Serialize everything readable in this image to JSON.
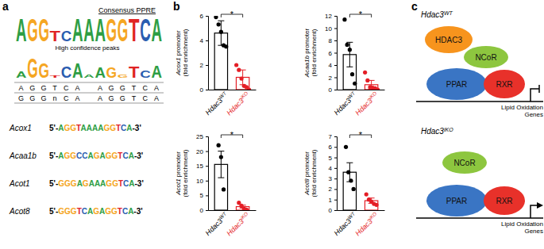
{
  "panel_labels": [
    "a",
    "b",
    "c"
  ],
  "panel_a": {
    "title": "Consensus PPRE",
    "subtitle": "High confidence peaks",
    "base_colors": {
      "A": "#2e9e44",
      "G": "#f5a623",
      "C": "#2a5db0",
      "T": "#e02424",
      "n": "#333333"
    },
    "consensus_logo": {
      "letters": [
        "A",
        "G",
        "G",
        "T",
        "C",
        "A",
        "A",
        "A",
        "G",
        "G",
        "T",
        "C",
        "A"
      ],
      "heights": [
        2,
        2,
        2,
        0.9,
        0.9,
        2,
        2,
        2,
        2,
        2,
        2,
        2,
        2
      ]
    },
    "peaks_logo": {
      "letters": [
        "A",
        "G",
        "G",
        "T",
        "C",
        "A",
        "A",
        "A",
        "G",
        "G",
        "T",
        "C",
        "A"
      ],
      "heights": [
        0.5,
        1.7,
        1.3,
        0.2,
        1.0,
        1.3,
        0.3,
        0.9,
        0.9,
        0.3,
        1.0,
        0.6,
        1.1
      ]
    },
    "alignment": [
      [
        "A",
        "G",
        "G",
        "T",
        "C",
        "A",
        "A",
        "G",
        "G",
        "T",
        "C",
        "A"
      ],
      [
        "G",
        "G",
        "G",
        "n",
        "C",
        "A",
        "A",
        "G",
        "G",
        "T",
        "C",
        "A"
      ]
    ],
    "genes": [
      {
        "name": "Acox1",
        "prefix": "5'-",
        "sequence": "AGGTAAAAGGTCA",
        "suffix": "-3'"
      },
      {
        "name": "Acaa1b",
        "prefix": "5'-",
        "sequence": "AGGCCAGAGGTCA",
        "suffix": "-3'"
      },
      {
        "name": "Acot1",
        "prefix": "5'-",
        "sequence": "GGGAGAAAGGTCA",
        "suffix": "-3'"
      },
      {
        "name": "Acot8",
        "prefix": "5'-",
        "sequence": "GGGTCAGAGGTCA",
        "suffix": "-3'"
      }
    ]
  },
  "chart_data": [
    {
      "type": "bar",
      "y_label": [
        "Acox1 promoter",
        "(fold enrichment)"
      ],
      "categories": [
        "Hdac3WT",
        "Hdac3iKO"
      ],
      "values": [
        4.6,
        1.0
      ],
      "errors": [
        1.0,
        0.6
      ],
      "points": [
        [
          5.9,
          5.3,
          4.7,
          3.6,
          3.5
        ],
        [
          2.0,
          1.6,
          0.9,
          0.3,
          0.2,
          0.0
        ]
      ],
      "colors": [
        "#000000",
        "#e41e26"
      ],
      "ylim": [
        0,
        6
      ],
      "yticks": [
        0,
        2,
        4,
        6
      ],
      "annotations": [
        "*"
      ]
    },
    {
      "type": "bar",
      "y_label": [
        "Acaa1b promoter",
        "(fold enrichment)"
      ],
      "categories": [
        "Hdac3WT",
        "Hdac3iKO"
      ],
      "values": [
        5.7,
        0.8
      ],
      "errors": [
        2.0,
        0.7
      ],
      "points": [
        [
          11.4,
          7.3,
          6.5,
          2.5,
          1.0
        ],
        [
          2.8,
          1.5,
          0.4,
          0.3,
          0.2,
          0.0
        ]
      ],
      "colors": [
        "#000000",
        "#e41e26"
      ],
      "ylim": [
        0,
        12
      ],
      "yticks": [
        0,
        2,
        4,
        6,
        8,
        10,
        12
      ],
      "annotations": [
        "*"
      ]
    },
    {
      "type": "bar",
      "y_label": [
        "Acot1 promoter",
        "(fold enrichment)"
      ],
      "categories": [
        "Hdac3WT",
        "Hdac3iKO"
      ],
      "values": [
        15.5,
        1.2
      ],
      "errors": [
        4.5,
        0.5
      ],
      "points": [
        [
          22,
          18,
          7
        ],
        [
          2.5,
          1.5,
          0.5,
          0.2
        ]
      ],
      "colors": [
        "#000000",
        "#e41e26"
      ],
      "ylim": [
        0,
        25
      ],
      "yticks": [
        0,
        5,
        10,
        15,
        20,
        25
      ],
      "annotations": [
        "*"
      ]
    },
    {
      "type": "bar",
      "y_label": [
        "Acot8 promoter",
        "(fold enrichment)"
      ],
      "categories": [
        "Hdac3WT",
        "Hdac3iKO"
      ],
      "values": [
        3.6,
        0.9
      ],
      "errors": [
        0.9,
        0.25
      ],
      "points": [
        [
          6.0,
          3.6,
          2.8,
          2.0
        ],
        [
          1.5,
          1.0,
          0.8,
          0.6,
          0.5
        ]
      ],
      "colors": [
        "#000000",
        "#e41e26"
      ],
      "ylim": [
        0,
        7
      ],
      "yticks": [
        0,
        1,
        2,
        3,
        4,
        5,
        6,
        7
      ],
      "annotations": [
        "*"
      ]
    }
  ],
  "panel_c": {
    "colors": [
      "#f7941d",
      "#8dc63f",
      "#3a75c4",
      "#e8312a"
    ],
    "states": [
      {
        "label": "Hdac3WT",
        "proteins": [
          "HDAC3",
          "NCoR",
          "PPAR",
          "RXR"
        ],
        "target": [
          "Lipid Oxidation",
          "Genes"
        ]
      },
      {
        "label": "Hdac3iKO",
        "proteins": [
          "NCoR",
          "PPAR",
          "RXR"
        ],
        "target": [
          "Lipid Oxidation",
          "Genes"
        ]
      }
    ]
  }
}
